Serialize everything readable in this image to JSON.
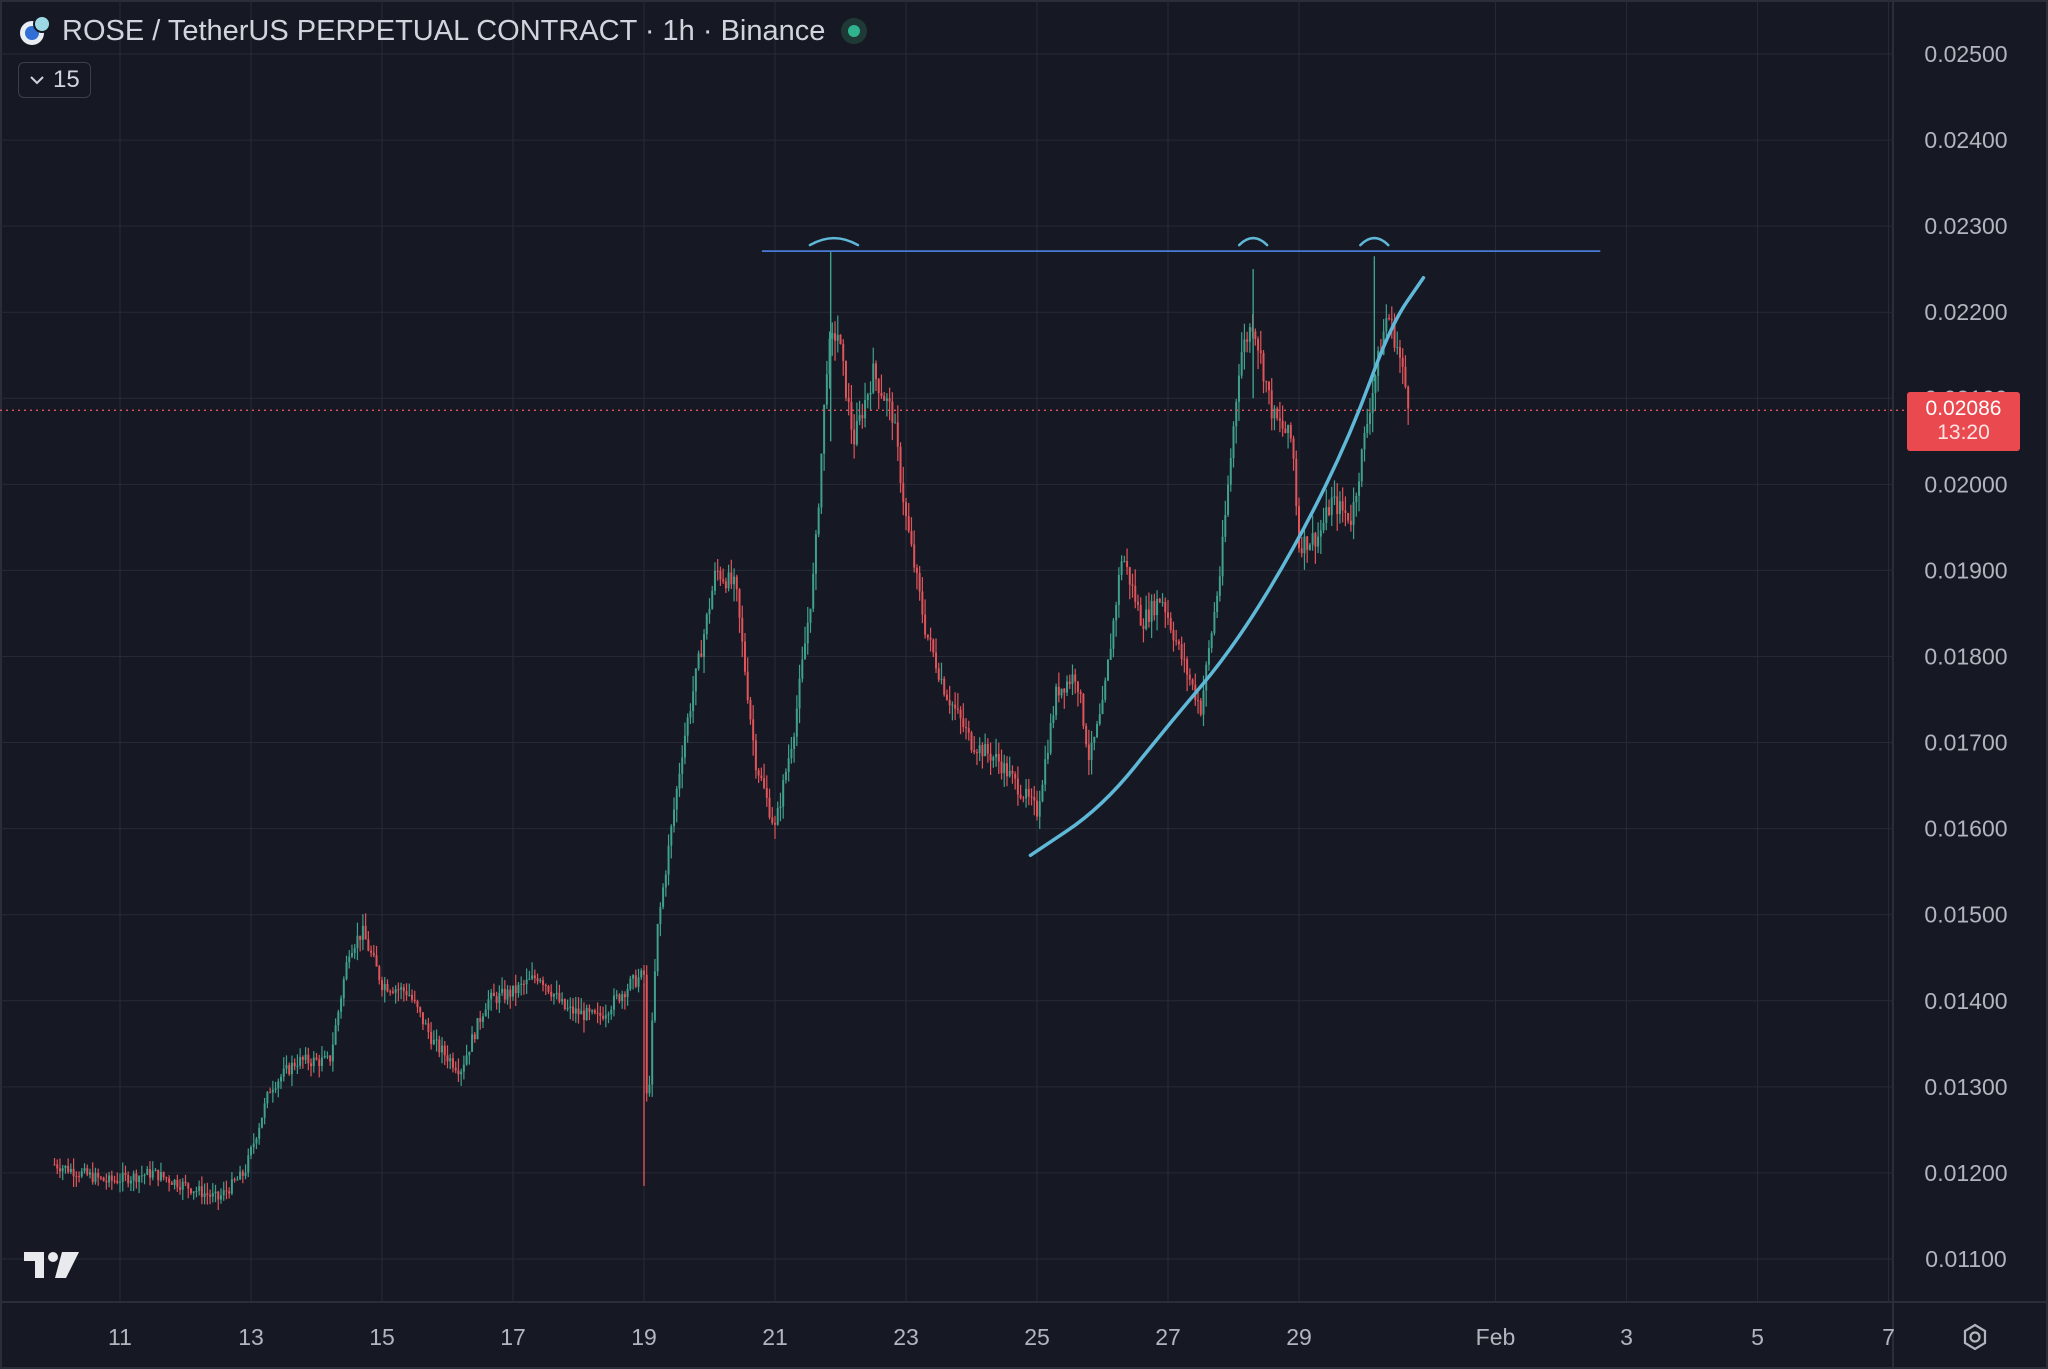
{
  "header": {
    "title": "ROSE / TetherUS PERPETUAL CONTRACT · 1h · Binance",
    "indicator_count": "15"
  },
  "price_axis_labels": [
    "0.02500",
    "0.02400",
    "0.02300",
    "0.02200",
    "0.02100",
    "0.02000",
    "0.01900",
    "0.01800",
    "0.01700",
    "0.01600",
    "0.01500",
    "0.01400",
    "0.01300",
    "0.01200",
    "0.01100"
  ],
  "time_axis_labels": [
    "11",
    "13",
    "15",
    "17",
    "19",
    "21",
    "23",
    "25",
    "27",
    "29",
    "Feb",
    "3",
    "5",
    "7"
  ],
  "current_price": {
    "value": "0.02086",
    "countdown": "13:20"
  },
  "colors": {
    "background": "#161923",
    "grid": "#262a35",
    "up_candle": "#3fa08c",
    "down_candle": "#e0545a",
    "resistance_line": "#4a7bd9",
    "curve": "#5fb8d8",
    "price_line": "#e0545a",
    "axis_text": "#b2b5be"
  },
  "icons": [
    "rose-logo-icon",
    "chevron-down-icon",
    "live-status-icon",
    "tradingview-logo-icon",
    "settings-icon"
  ],
  "chart_data": {
    "type": "candlestick",
    "title": "ROSE / TetherUS PERPETUAL CONTRACT · 1h · Binance",
    "xlabel": "",
    "ylabel": "",
    "ylim": [
      0.0106,
      0.0255
    ],
    "grid": true,
    "x_ticks": [
      "11",
      "13",
      "15",
      "17",
      "19",
      "21",
      "23",
      "25",
      "27",
      "29",
      "Feb",
      "3",
      "5",
      "7"
    ],
    "y_ticks": [
      0.025,
      0.024,
      0.023,
      0.022,
      0.021,
      0.02,
      0.019,
      0.018,
      0.017,
      0.016,
      0.015,
      0.014,
      0.013,
      0.012,
      0.011
    ],
    "price_path": [
      [
        10.0,
        0.0121
      ],
      [
        10.8,
        0.0119
      ],
      [
        11.5,
        0.012
      ],
      [
        12.0,
        0.01185
      ],
      [
        12.5,
        0.0117
      ],
      [
        12.9,
        0.012
      ],
      [
        13.3,
        0.013
      ],
      [
        13.7,
        0.0133
      ],
      [
        14.2,
        0.0133
      ],
      [
        14.5,
        0.0146
      ],
      [
        14.7,
        0.0148
      ],
      [
        15.0,
        0.0142
      ],
      [
        15.4,
        0.0141
      ],
      [
        15.8,
        0.0135
      ],
      [
        16.2,
        0.0132
      ],
      [
        16.6,
        0.014
      ],
      [
        17.0,
        0.0141
      ],
      [
        17.4,
        0.0143
      ],
      [
        17.8,
        0.0139
      ],
      [
        18.3,
        0.0138
      ],
      [
        18.8,
        0.0142
      ],
      [
        19.0,
        0.0143
      ],
      [
        19.05,
        0.0126
      ],
      [
        19.2,
        0.0148
      ],
      [
        19.6,
        0.017
      ],
      [
        19.9,
        0.0182
      ],
      [
        20.1,
        0.019
      ],
      [
        20.4,
        0.0188
      ],
      [
        20.7,
        0.0168
      ],
      [
        21.0,
        0.016
      ],
      [
        21.3,
        0.0172
      ],
      [
        21.6,
        0.019
      ],
      [
        21.8,
        0.0215
      ],
      [
        21.95,
        0.0218
      ],
      [
        22.2,
        0.0205
      ],
      [
        22.5,
        0.0213
      ],
      [
        22.8,
        0.0208
      ],
      [
        23.0,
        0.0196
      ],
      [
        23.3,
        0.0183
      ],
      [
        23.6,
        0.0176
      ],
      [
        24.0,
        0.017
      ],
      [
        24.4,
        0.0168
      ],
      [
        24.8,
        0.0164
      ],
      [
        25.0,
        0.0162
      ],
      [
        25.3,
        0.0176
      ],
      [
        25.6,
        0.0178
      ],
      [
        25.8,
        0.0168
      ],
      [
        26.0,
        0.0174
      ],
      [
        26.3,
        0.0192
      ],
      [
        26.6,
        0.0184
      ],
      [
        26.9,
        0.0187
      ],
      [
        27.2,
        0.018
      ],
      [
        27.5,
        0.0174
      ],
      [
        27.8,
        0.019
      ],
      [
        28.1,
        0.0215
      ],
      [
        28.3,
        0.0219
      ],
      [
        28.6,
        0.0208
      ],
      [
        28.9,
        0.0205
      ],
      [
        29.0,
        0.0193
      ],
      [
        29.3,
        0.0194
      ],
      [
        29.5,
        0.0198
      ],
      [
        29.8,
        0.0196
      ],
      [
        30.1,
        0.021
      ],
      [
        30.35,
        0.022
      ],
      [
        30.5,
        0.0216
      ],
      [
        30.7,
        0.02086
      ]
    ],
    "candle_step_days": 0.04166667,
    "annotations": [
      {
        "type": "horizontal_line",
        "price": 0.02271,
        "x_start": 20.8,
        "x_end": 33.6
      },
      {
        "type": "curve",
        "points": [
          [
            24.9,
            0.01569
          ],
          [
            26.0,
            0.01625
          ],
          [
            27.0,
            0.0172
          ],
          [
            28.0,
            0.0181
          ],
          [
            29.0,
            0.01935
          ],
          [
            29.8,
            0.0206
          ],
          [
            30.4,
            0.02185
          ],
          [
            30.9,
            0.0224
          ]
        ]
      },
      {
        "type": "arc_marks",
        "x": [
          21.9,
          28.3,
          30.15
        ]
      }
    ],
    "current_price": 0.02086
  }
}
